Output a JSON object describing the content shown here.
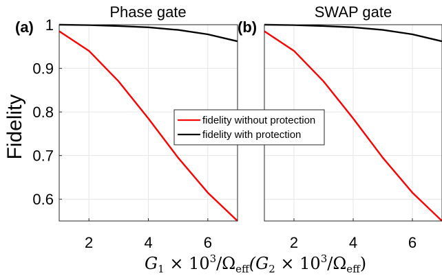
{
  "chart_data": [
    {
      "type": "line",
      "panel_label": "(a)",
      "title": "Phase gate",
      "xlim": [
        1,
        7
      ],
      "ylim": [
        0.55,
        1.0
      ],
      "xticks": [
        2,
        4,
        6
      ],
      "yticks": [
        0.6,
        0.7,
        0.8,
        0.9,
        1
      ],
      "grid": true,
      "series": [
        {
          "name": "fidelity without protection",
          "color": "#ff0000",
          "x": [
            1,
            2,
            3,
            4,
            5,
            6,
            7
          ],
          "y": [
            0.985,
            0.94,
            0.87,
            0.785,
            0.695,
            0.615,
            0.55
          ]
        },
        {
          "name": "fidelity with protection",
          "color": "#000000",
          "x": [
            1,
            2,
            3,
            4,
            5,
            6,
            7
          ],
          "y": [
            1.0,
            0.999,
            0.997,
            0.994,
            0.988,
            0.978,
            0.962
          ]
        }
      ]
    },
    {
      "type": "line",
      "panel_label": "(b)",
      "title": "SWAP gate",
      "xlim": [
        1,
        7
      ],
      "ylim": [
        0.55,
        1.0
      ],
      "xticks": [
        2,
        4,
        6
      ],
      "yticks": [],
      "grid": true,
      "series": [
        {
          "name": "fidelity without protection",
          "color": "#ff0000",
          "x": [
            1,
            2,
            3,
            4,
            5,
            6,
            7
          ],
          "y": [
            0.985,
            0.94,
            0.87,
            0.785,
            0.695,
            0.615,
            0.55
          ]
        },
        {
          "name": "fidelity with protection",
          "color": "#000000",
          "x": [
            1,
            2,
            3,
            4,
            5,
            6,
            7
          ],
          "y": [
            1.0,
            0.999,
            0.997,
            0.994,
            0.988,
            0.978,
            0.962
          ]
        }
      ]
    }
  ],
  "ylabel": "Fidelity",
  "xlabel": {
    "g1": "G",
    "g1_sub": "1",
    "times": " × 10",
    "exp": "3",
    "slash": "/Ω",
    "eff": "eff",
    "open": "(G",
    "g2_sub": "2",
    "times2": " × 10",
    "exp2": "3",
    "slash2": "/Ω",
    "eff2": "eff",
    "close": ")"
  },
  "legend": {
    "placement": "center",
    "entries": [
      "fidelity without protection",
      "fidelity with protection"
    ]
  }
}
